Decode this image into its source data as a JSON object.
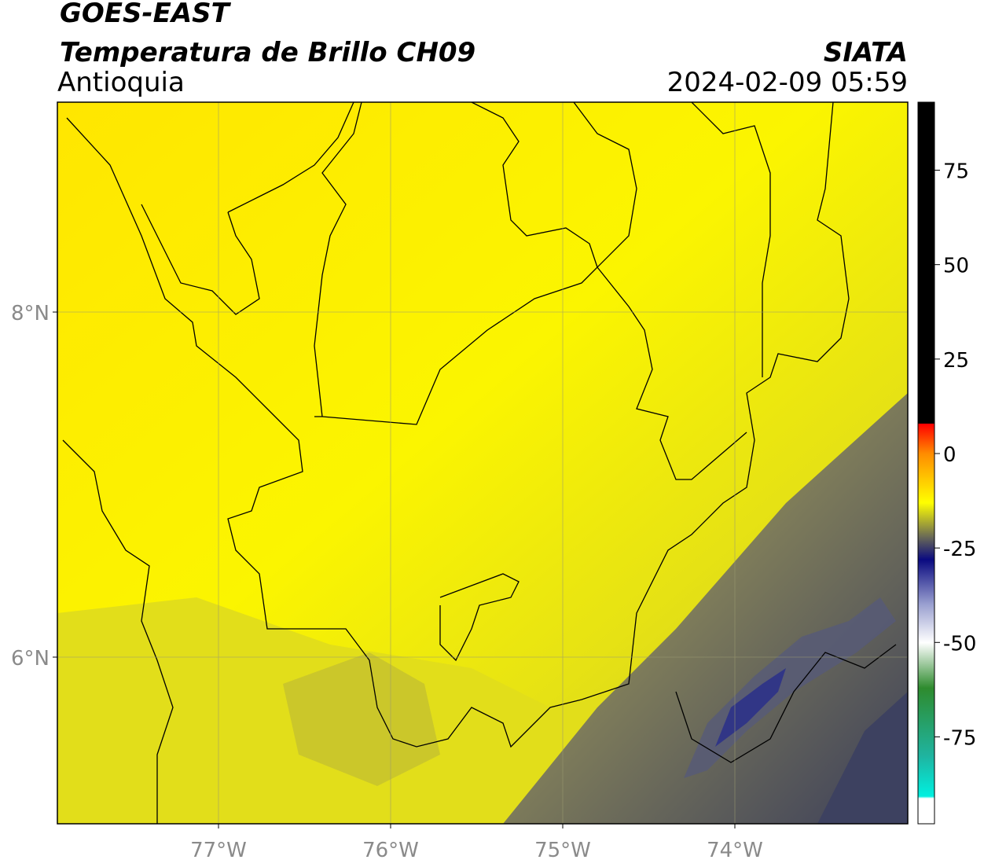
{
  "header": {
    "satellite": "GOES-EAST",
    "product": "Temperatura de Brillo CH09",
    "region": "Antioquia",
    "agency": "SIATA",
    "datetime": "2024-02-09 05:59"
  },
  "map": {
    "lon_ticks": [
      "77°W",
      "76°W",
      "75°W",
      "74°W"
    ],
    "lat_ticks": [
      "8°N",
      "6°N"
    ]
  },
  "colorbar": {
    "range": [
      -98,
      93
    ],
    "ticks": [
      75,
      50,
      25,
      0,
      -25,
      -50,
      -75
    ]
  }
}
